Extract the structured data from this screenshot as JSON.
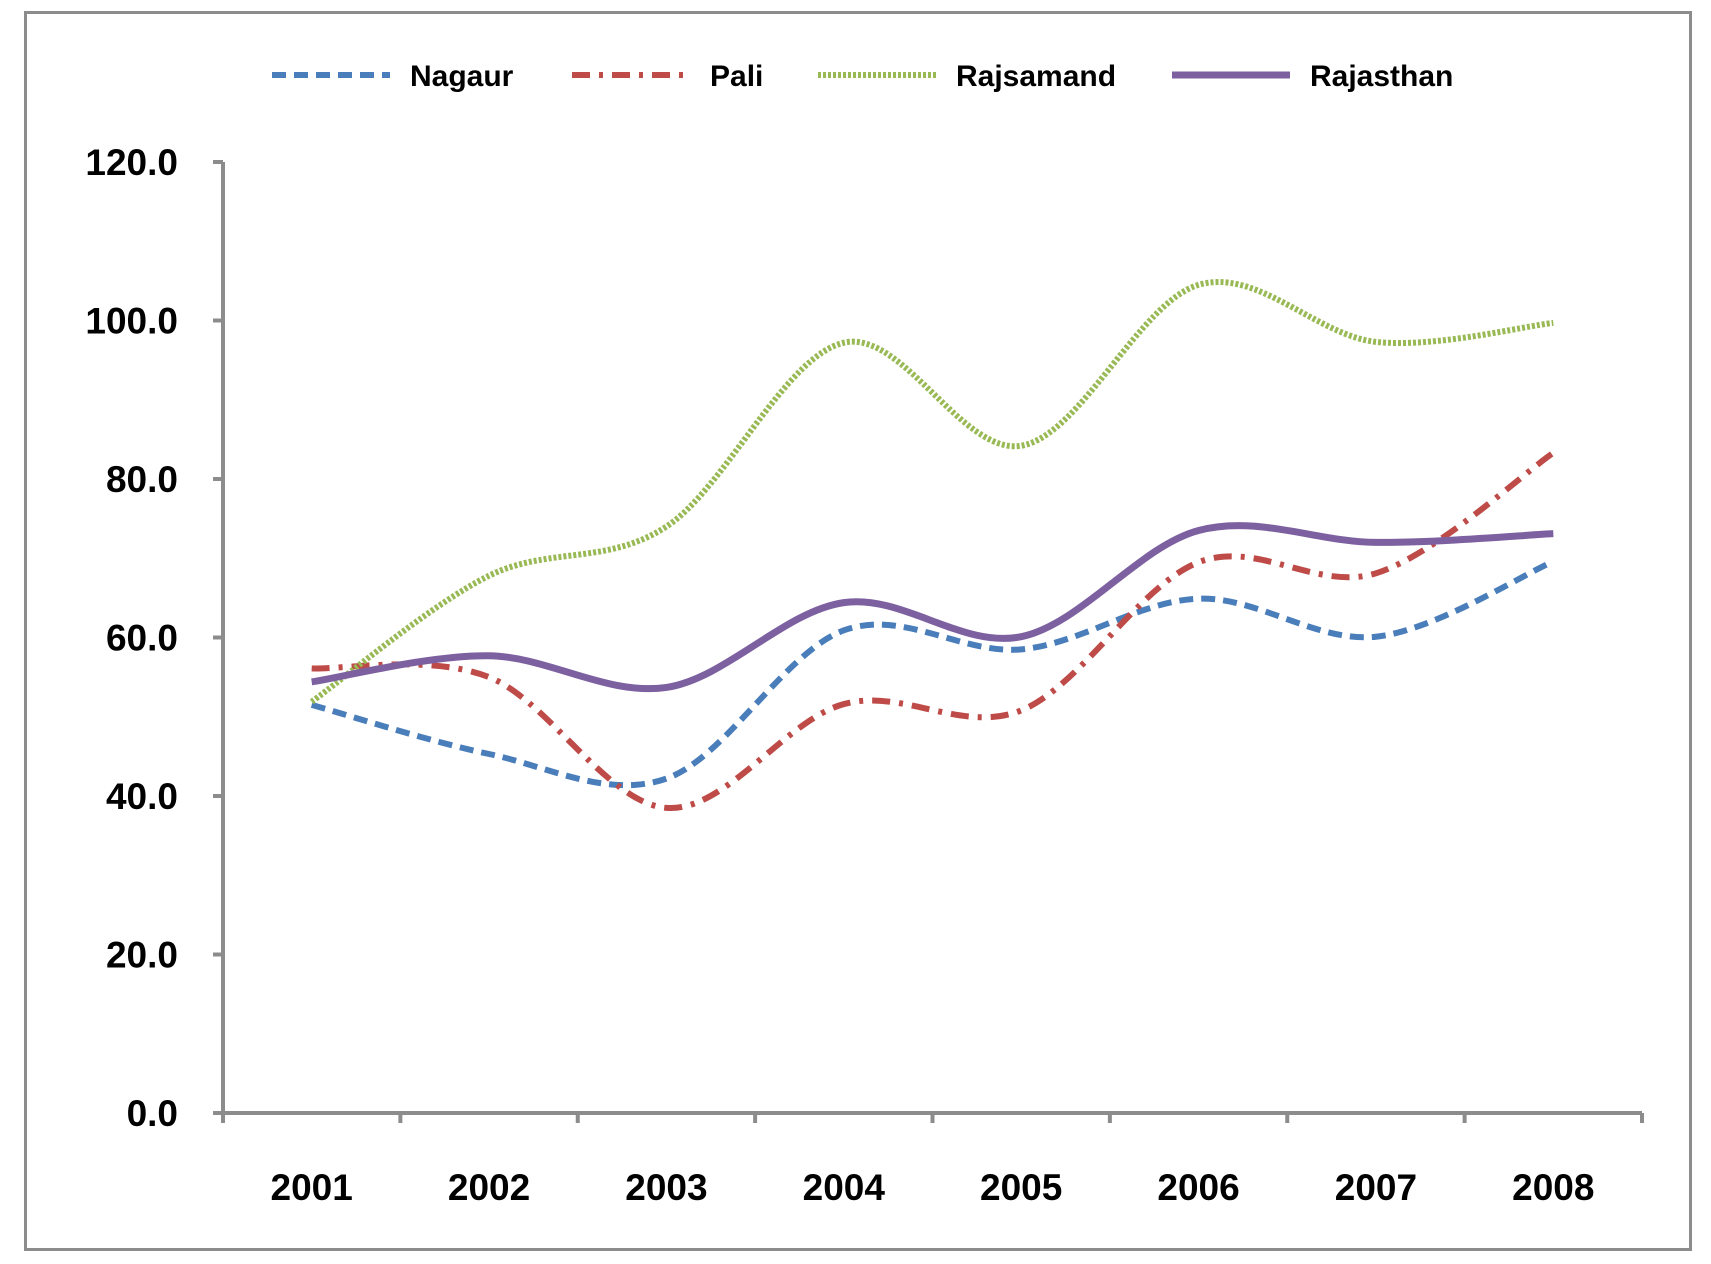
{
  "chart_data": {
    "type": "line",
    "title": "",
    "xlabel": "",
    "ylabel": "",
    "categories": [
      "2001",
      "2002",
      "2003",
      "2004",
      "2005",
      "2006",
      "2007",
      "2008"
    ],
    "ylim": [
      0,
      120
    ],
    "yticks": [
      "0.0",
      "20.0",
      "40.0",
      "60.0",
      "80.0",
      "100.0",
      "120.0"
    ],
    "grid": false,
    "legend_position": "top",
    "smooth": true,
    "series": [
      {
        "name": "Nagaur",
        "color": "#4a7ebb",
        "style": "dashed",
        "values": [
          51.5,
          45.3,
          42.2,
          60.9,
          58.5,
          64.9,
          60.1,
          69.6
        ]
      },
      {
        "name": "Pali",
        "color": "#be4b48",
        "style": "dashdot",
        "values": [
          56.1,
          55.0,
          38.5,
          51.6,
          50.8,
          69.5,
          68.1,
          83.3
        ]
      },
      {
        "name": "Rajsamand",
        "color": "#98b954",
        "style": "dotted",
        "values": [
          51.9,
          67.8,
          74.0,
          97.2,
          84.2,
          104.5,
          97.3,
          99.7
        ]
      },
      {
        "name": "Rajasthan",
        "color": "#7d60a0",
        "style": "solid",
        "values": [
          54.4,
          57.7,
          53.7,
          64.4,
          60.1,
          73.5,
          72.0,
          73.1
        ]
      }
    ]
  }
}
